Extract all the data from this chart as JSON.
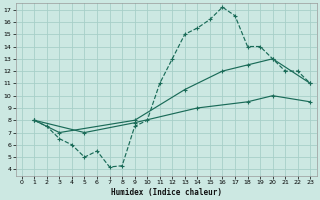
{
  "xlabel": "Humidex (Indice chaleur)",
  "background_color": "#cce8e2",
  "grid_color": "#a8cfc8",
  "line_color": "#1a6b58",
  "xlim": [
    -0.5,
    23.5
  ],
  "ylim": [
    3.5,
    17.5
  ],
  "xticks": [
    0,
    1,
    2,
    3,
    4,
    5,
    6,
    7,
    8,
    9,
    10,
    11,
    12,
    13,
    14,
    15,
    16,
    17,
    18,
    19,
    20,
    21,
    22,
    23
  ],
  "yticks": [
    4,
    5,
    6,
    7,
    8,
    9,
    10,
    11,
    12,
    13,
    14,
    15,
    16,
    17
  ],
  "curve1_x": [
    1,
    2,
    3,
    4,
    5,
    6,
    7,
    8,
    9,
    10,
    11,
    12,
    13,
    14,
    15,
    16,
    17,
    18,
    19,
    20,
    21,
    22,
    23
  ],
  "curve1_y": [
    8.0,
    7.5,
    6.5,
    6.0,
    5.0,
    5.5,
    4.2,
    4.3,
    7.5,
    8.0,
    11.0,
    13.0,
    15.0,
    15.5,
    16.2,
    17.2,
    16.5,
    14.0,
    14.0,
    13.0,
    12.0,
    12.0,
    11.0
  ],
  "curve2_x": [
    1,
    3,
    9,
    13,
    16,
    18,
    20,
    23
  ],
  "curve2_y": [
    8.0,
    7.0,
    8.0,
    10.5,
    12.0,
    12.5,
    13.0,
    11.0
  ],
  "curve3_x": [
    1,
    5,
    9,
    14,
    18,
    20,
    23
  ],
  "curve3_y": [
    8.0,
    7.0,
    7.8,
    9.0,
    9.5,
    10.0,
    9.5
  ]
}
